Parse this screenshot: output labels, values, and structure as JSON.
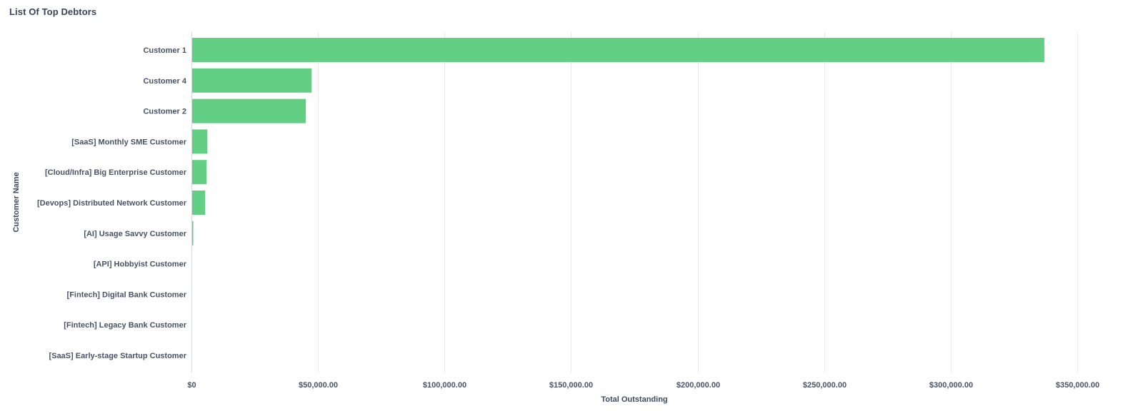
{
  "title": "List Of Top Debtors",
  "chart_data": {
    "type": "bar",
    "orientation": "horizontal",
    "title": "List Of Top Debtors",
    "xlabel": "Total Outstanding",
    "ylabel": "Customer Name",
    "xlim": [
      0,
      350000
    ],
    "x_ticks": [
      0,
      50000,
      100000,
      150000,
      200000,
      250000,
      300000,
      350000
    ],
    "x_tick_labels": [
      "$0",
      "$50,000.00",
      "$100,000.00",
      "$150,000.00",
      "$200,000.00",
      "$250,000.00",
      "$300,000.00",
      "$350,000.00"
    ],
    "grid": true,
    "legend": "none",
    "bar_color": "#62cf85",
    "categories": [
      "Customer 1",
      "Customer 4",
      "Customer 2",
      "[SaaS] Monthly SME Customer",
      "[Cloud/Infra] Big Enterprise Customer",
      "[Devops] Distributed Network Customer",
      "[AI] Usage Savvy Customer",
      "[API] Hobbyist Customer",
      "[Fintech] Digital Bank Customer",
      "[Fintech] Legacy Bank Customer",
      "[SaaS] Early-stage Startup Customer"
    ],
    "values": [
      337000,
      47500,
      45200,
      6300,
      6000,
      5400,
      600,
      0,
      0,
      0,
      0
    ]
  }
}
